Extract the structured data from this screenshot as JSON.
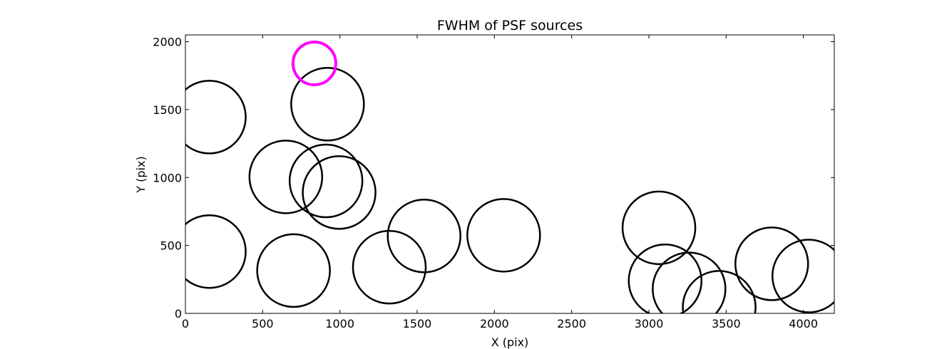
{
  "chart_data": {
    "type": "scatter",
    "title": "FWHM of PSF sources",
    "xlabel": "X (pix)",
    "ylabel": "Y (pix)",
    "xlim": [
      0,
      4200
    ],
    "ylim": [
      0,
      2050
    ],
    "xticks": [
      0,
      500,
      1000,
      1500,
      2000,
      2500,
      3000,
      3500,
      4000
    ],
    "yticks": [
      0,
      500,
      1000,
      1500,
      2000
    ],
    "grid": false,
    "marker": "open circle",
    "colors": {
      "source": "#000000",
      "highlight": "#ff00ff"
    },
    "points": [
      {
        "x": 155,
        "y": 1445,
        "highlight": false
      },
      {
        "x": 920,
        "y": 1540,
        "highlight": false
      },
      {
        "x": 650,
        "y": 1005,
        "highlight": false
      },
      {
        "x": 910,
        "y": 975,
        "highlight": false
      },
      {
        "x": 995,
        "y": 890,
        "highlight": false
      },
      {
        "x": 155,
        "y": 455,
        "highlight": false
      },
      {
        "x": 700,
        "y": 315,
        "highlight": false
      },
      {
        "x": 1320,
        "y": 340,
        "highlight": false
      },
      {
        "x": 1545,
        "y": 570,
        "highlight": false
      },
      {
        "x": 2060,
        "y": 575,
        "highlight": false
      },
      {
        "x": 3065,
        "y": 630,
        "highlight": false
      },
      {
        "x": 3105,
        "y": 240,
        "highlight": false
      },
      {
        "x": 3260,
        "y": 180,
        "highlight": false
      },
      {
        "x": 3455,
        "y": 45,
        "highlight": false
      },
      {
        "x": 3795,
        "y": 365,
        "highlight": false
      },
      {
        "x": 4035,
        "y": 275,
        "highlight": false
      },
      {
        "x": 835,
        "y": 1840,
        "highlight": true
      }
    ]
  }
}
